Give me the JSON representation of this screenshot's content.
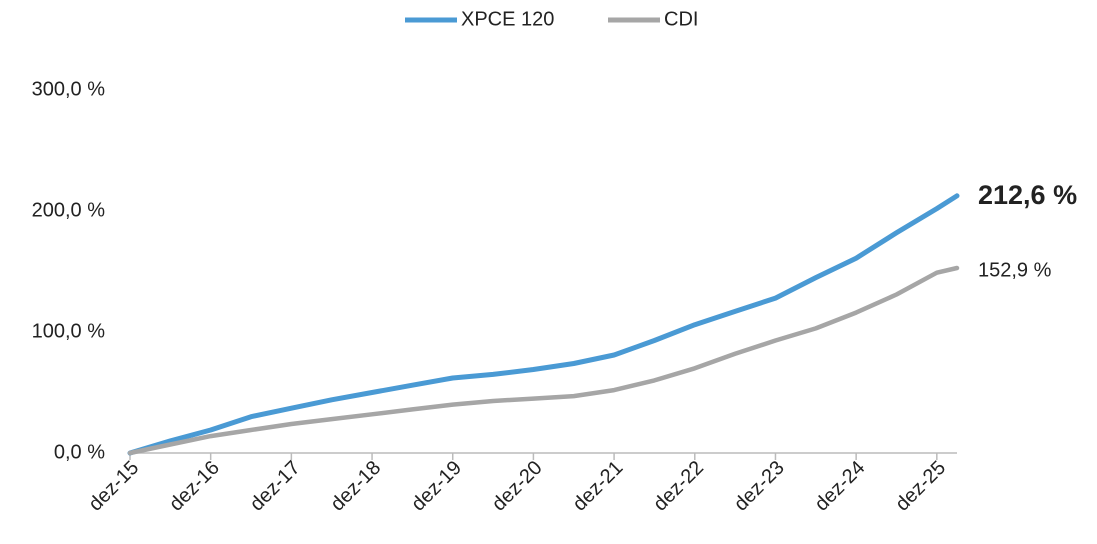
{
  "chart_data": {
    "type": "line",
    "x": [
      2015.917,
      2016.417,
      2016.917,
      2017.417,
      2017.917,
      2018.417,
      2018.917,
      2019.417,
      2019.917,
      2020.417,
      2020.917,
      2021.417,
      2021.917,
      2022.417,
      2022.917,
      2023.417,
      2023.917,
      2024.417,
      2024.917,
      2025.417,
      2025.917,
      2026.167
    ],
    "series": [
      {
        "name": "XPCE 120",
        "color": "#4a9ad4",
        "values": [
          0,
          10,
          19,
          30,
          37,
          44,
          50,
          56,
          62,
          65,
          69,
          74,
          81,
          93,
          106,
          117,
          128,
          145,
          161,
          182,
          202,
          212.6
        ],
        "value_labels": [
          null,
          null,
          null,
          null,
          null,
          null,
          null,
          null,
          null,
          null,
          null,
          null,
          null,
          null,
          null,
          null,
          null,
          null,
          null,
          null,
          null,
          "212,6 %"
        ]
      },
      {
        "name": "CDI",
        "color": "#a6a6a6",
        "values": [
          0,
          7,
          14,
          19,
          24,
          28,
          32,
          36,
          40,
          43,
          45,
          47,
          52,
          60,
          70,
          82,
          93,
          103,
          116,
          131,
          149,
          152.9
        ],
        "value_labels": [
          null,
          null,
          null,
          null,
          null,
          null,
          null,
          null,
          null,
          null,
          null,
          null,
          null,
          null,
          null,
          null,
          null,
          null,
          null,
          null,
          null,
          "152,9 %"
        ]
      }
    ],
    "xlim": [
      2015.917,
      2026.167
    ],
    "xticks": [
      {
        "value": 2015.917,
        "label": "dez-15"
      },
      {
        "value": 2016.917,
        "label": "dez-16"
      },
      {
        "value": 2017.917,
        "label": "dez-17"
      },
      {
        "value": 2018.917,
        "label": "dez-18"
      },
      {
        "value": 2019.917,
        "label": "dez-19"
      },
      {
        "value": 2020.917,
        "label": "dez-20"
      },
      {
        "value": 2021.917,
        "label": "dez-21"
      },
      {
        "value": 2022.917,
        "label": "dez-22"
      },
      {
        "value": 2023.917,
        "label": "dez-23"
      },
      {
        "value": 2024.917,
        "label": "dez-24"
      },
      {
        "value": 2025.917,
        "label": "dez-25"
      }
    ],
    "ylim": [
      0,
      300
    ],
    "yticks": [
      {
        "value": 0,
        "label": "0,0 %"
      },
      {
        "value": 100,
        "label": "100,0 %"
      },
      {
        "value": 200,
        "label": "200,0 %"
      },
      {
        "value": 300,
        "label": "300,0 %"
      }
    ],
    "legend": "top"
  }
}
